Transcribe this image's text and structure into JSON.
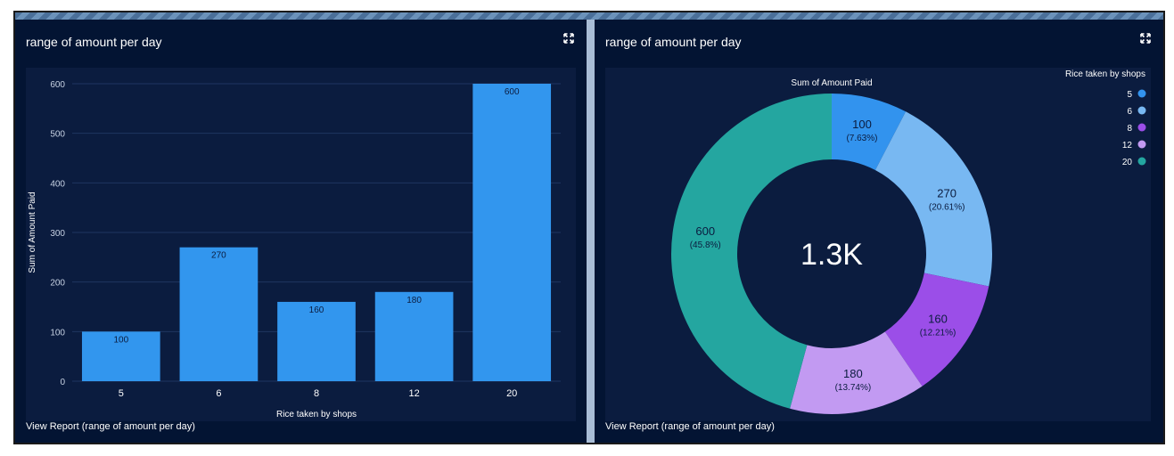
{
  "panels": [
    {
      "title": "range of amount per day",
      "view_report": "View Report (range of amount per day)"
    },
    {
      "title": "range of amount per day",
      "view_report": "View Report (range of amount per day)"
    }
  ],
  "colors": {
    "bar": "#3296ee",
    "panel_bg": "#031433",
    "chart_bg": "#0b1c3f"
  },
  "chart_data": [
    {
      "type": "bar",
      "categories": [
        "5",
        "6",
        "8",
        "12",
        "20"
      ],
      "values": [
        100,
        270,
        160,
        180,
        600
      ],
      "data_labels": [
        "100",
        "270",
        "160",
        "180",
        "600"
      ],
      "xlabel": "Rice taken by shops",
      "ylabel": "Sum of Amount Paid",
      "ylim": [
        0,
        600
      ],
      "yticks": [
        0,
        100,
        200,
        300,
        400,
        500,
        600
      ],
      "grid": true
    },
    {
      "type": "pie",
      "title": "Sum of Amount Paid",
      "center_label": "1.3K",
      "legend_title": "Rice taken by shops",
      "legend_position": "top-right",
      "slices": [
        {
          "label": "5",
          "value": 100,
          "percent_label": "(7.63%)",
          "color": "#3293ee"
        },
        {
          "label": "6",
          "value": 270,
          "percent_label": "(20.61%)",
          "color": "#78b8f2"
        },
        {
          "label": "8",
          "value": 160,
          "percent_label": "(12.21%)",
          "color": "#9b4ee8"
        },
        {
          "label": "12",
          "value": 180,
          "percent_label": "(13.74%)",
          "color": "#c29af2"
        },
        {
          "label": "20",
          "value": 600,
          "percent_label": "(45.8%)",
          "color": "#24a6a0"
        }
      ]
    }
  ]
}
